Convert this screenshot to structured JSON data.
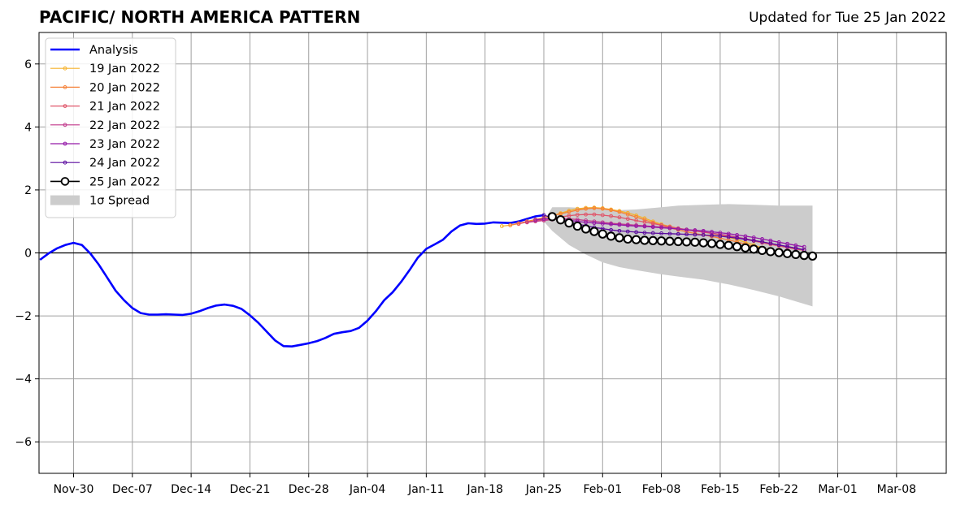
{
  "chart_data": {
    "type": "line",
    "title": "PACIFIC/ NORTH AMERICA PATTERN",
    "subtitle": "Updated for Tue 25 Jan 2022",
    "xlabel": "",
    "ylabel": "",
    "x_ticks": [
      "Nov-30",
      "Dec-07",
      "Dec-14",
      "Dec-21",
      "Dec-28",
      "Jan-04",
      "Jan-11",
      "Jan-18",
      "Jan-25",
      "Feb-01",
      "Feb-08",
      "Feb-15",
      "Feb-22",
      "Mar-01",
      "Mar-08"
    ],
    "y_ticks": [
      "6",
      "4",
      "2",
      "0",
      "−2",
      "−4",
      "−6"
    ],
    "ylim": [
      -7,
      7
    ],
    "grid": true,
    "legend_position": "top-left",
    "colors": {
      "analysis": "#0000ff",
      "spread": "#cccccc",
      "forecasts": [
        "#f5b12a",
        "#f5823a",
        "#e0566a",
        "#c0378a",
        "#9318a8",
        "#5a0a9e",
        "#000000"
      ]
    },
    "analysis": {
      "name": "Analysis",
      "x": [
        "2021-11-26",
        "2021-11-27",
        "2021-11-28",
        "2021-11-29",
        "2021-11-30",
        "2021-12-01",
        "2021-12-02",
        "2021-12-03",
        "2021-12-04",
        "2021-12-05",
        "2021-12-06",
        "2021-12-07",
        "2021-12-08",
        "2021-12-09",
        "2021-12-10",
        "2021-12-11",
        "2021-12-12",
        "2021-12-13",
        "2021-12-14",
        "2021-12-15",
        "2021-12-16",
        "2021-12-17",
        "2021-12-18",
        "2021-12-19",
        "2021-12-20",
        "2021-12-21",
        "2021-12-22",
        "2021-12-23",
        "2021-12-24",
        "2021-12-25",
        "2021-12-26",
        "2021-12-27",
        "2021-12-28",
        "2021-12-29",
        "2021-12-30",
        "2021-12-31",
        "2022-01-01",
        "2022-01-02",
        "2022-01-03",
        "2022-01-04",
        "2022-01-05",
        "2022-01-06",
        "2022-01-07",
        "2022-01-08",
        "2022-01-09",
        "2022-01-10",
        "2022-01-11",
        "2022-01-12",
        "2022-01-13",
        "2022-01-14",
        "2022-01-15",
        "2022-01-16",
        "2022-01-17",
        "2022-01-18",
        "2022-01-19",
        "2022-01-20",
        "2022-01-21",
        "2022-01-22",
        "2022-01-23",
        "2022-01-24",
        "2022-01-25"
      ],
      "y": [
        -0.22,
        -0.02,
        0.14,
        0.25,
        0.32,
        0.25,
        -0.02,
        -0.37,
        -0.78,
        -1.2,
        -1.5,
        -1.75,
        -1.91,
        -1.96,
        -1.96,
        -1.95,
        -1.96,
        -1.97,
        -1.93,
        -1.85,
        -1.75,
        -1.67,
        -1.64,
        -1.68,
        -1.78,
        -1.98,
        -2.22,
        -2.5,
        -2.78,
        -2.96,
        -2.97,
        -2.92,
        -2.87,
        -2.8,
        -2.7,
        -2.57,
        -2.52,
        -2.48,
        -2.38,
        -2.15,
        -1.85,
        -1.5,
        -1.25,
        -0.92,
        -0.55,
        -0.15,
        0.13,
        0.27,
        0.42,
        0.68,
        0.87,
        0.94,
        0.92,
        0.93,
        0.97,
        0.96,
        0.95,
        1.0,
        1.08,
        1.16,
        1.2
      ]
    },
    "forecasts": [
      {
        "name": "19 Jan 2022",
        "start": "2022-01-20",
        "y": [
          0.85,
          0.88,
          0.93,
          1.0,
          1.06,
          1.12,
          1.18,
          1.26,
          1.34,
          1.4,
          1.43,
          1.44,
          1.42,
          1.38,
          1.33,
          1.27,
          1.19,
          1.1,
          1.0,
          0.91,
          0.84,
          0.78,
          0.73,
          0.69,
          0.66,
          0.62,
          0.56,
          0.5,
          0.42,
          0.34,
          0.25,
          0.16,
          0.09,
          0.04,
          0.0,
          -0.04,
          -0.08,
          -0.11
        ]
      },
      {
        "name": "20 Jan 2022",
        "start": "2022-01-21",
        "y": [
          0.88,
          0.94,
          1.0,
          1.06,
          1.12,
          1.18,
          1.24,
          1.3,
          1.36,
          1.4,
          1.42,
          1.4,
          1.36,
          1.3,
          1.22,
          1.14,
          1.05,
          0.96,
          0.88,
          0.8,
          0.73,
          0.67,
          0.62,
          0.57,
          0.52,
          0.47,
          0.41,
          0.35,
          0.28,
          0.2,
          0.13,
          0.06,
          0.0,
          -0.05,
          -0.09,
          -0.12
        ]
      },
      {
        "name": "21 Jan 2022",
        "start": "2022-01-22",
        "y": [
          0.92,
          0.98,
          1.02,
          1.06,
          1.1,
          1.14,
          1.18,
          1.21,
          1.22,
          1.22,
          1.2,
          1.17,
          1.13,
          1.08,
          1.03,
          0.98,
          0.93,
          0.88,
          0.83,
          0.78,
          0.74,
          0.7,
          0.66,
          0.62,
          0.58,
          0.53,
          0.48,
          0.43,
          0.38,
          0.32,
          0.27,
          0.22,
          0.17,
          0.12,
          0.08
        ]
      },
      {
        "name": "22 Jan 2022",
        "start": "2022-01-23",
        "y": [
          0.97,
          1.0,
          1.03,
          1.06,
          1.08,
          1.08,
          1.06,
          1.03,
          1.0,
          0.97,
          0.94,
          0.92,
          0.9,
          0.88,
          0.86,
          0.84,
          0.82,
          0.79,
          0.76,
          0.73,
          0.7,
          0.67,
          0.63,
          0.59,
          0.55,
          0.5,
          0.45,
          0.4,
          0.35,
          0.3,
          0.25,
          0.2,
          0.15,
          0.1
        ]
      },
      {
        "name": "23 Jan 2022",
        "start": "2022-01-24",
        "y": [
          1.05,
          1.08,
          1.09,
          1.07,
          1.04,
          1.0,
          0.97,
          0.95,
          0.93,
          0.91,
          0.89,
          0.87,
          0.85,
          0.84,
          0.82,
          0.8,
          0.78,
          0.76,
          0.74,
          0.72,
          0.7,
          0.67,
          0.64,
          0.61,
          0.57,
          0.53,
          0.49,
          0.44,
          0.39,
          0.34,
          0.29,
          0.24,
          0.19
        ]
      },
      {
        "name": "24 Jan 2022",
        "start": "2022-01-25",
        "y": [
          1.2,
          1.12,
          1.05,
          0.98,
          0.92,
          0.86,
          0.81,
          0.77,
          0.73,
          0.7,
          0.68,
          0.66,
          0.64,
          0.63,
          0.62,
          0.61,
          0.6,
          0.59,
          0.58,
          0.57,
          0.55,
          0.53,
          0.5,
          0.47,
          0.43,
          0.39,
          0.35,
          0.3,
          0.25,
          0.2,
          0.15,
          0.1
        ]
      },
      {
        "name": "25 Jan 2022",
        "start": "2022-01-26",
        "y": [
          1.15,
          1.05,
          0.95,
          0.85,
          0.76,
          0.68,
          0.6,
          0.53,
          0.48,
          0.44,
          0.42,
          0.4,
          0.39,
          0.38,
          0.37,
          0.36,
          0.35,
          0.34,
          0.32,
          0.3,
          0.27,
          0.24,
          0.2,
          0.16,
          0.12,
          0.08,
          0.04,
          0.01,
          -0.02,
          -0.05,
          -0.08,
          -0.1
        ]
      }
    ],
    "spread": {
      "name": "1σ Spread",
      "x": [
        "2022-01-25",
        "2022-01-26",
        "2022-01-28",
        "2022-01-30",
        "2022-02-01",
        "2022-02-03",
        "2022-02-05",
        "2022-02-08",
        "2022-02-10",
        "2022-02-13",
        "2022-02-16",
        "2022-02-19",
        "2022-02-22",
        "2022-02-26"
      ],
      "upper": [
        1.0,
        1.45,
        1.45,
        1.42,
        1.38,
        1.36,
        1.38,
        1.45,
        1.5,
        1.53,
        1.55,
        1.53,
        1.5,
        1.5
      ],
      "lower": [
        1.0,
        0.7,
        0.25,
        -0.05,
        -0.3,
        -0.45,
        -0.55,
        -0.68,
        -0.75,
        -0.85,
        -1.0,
        -1.18,
        -1.38,
        -1.7
      ]
    }
  }
}
